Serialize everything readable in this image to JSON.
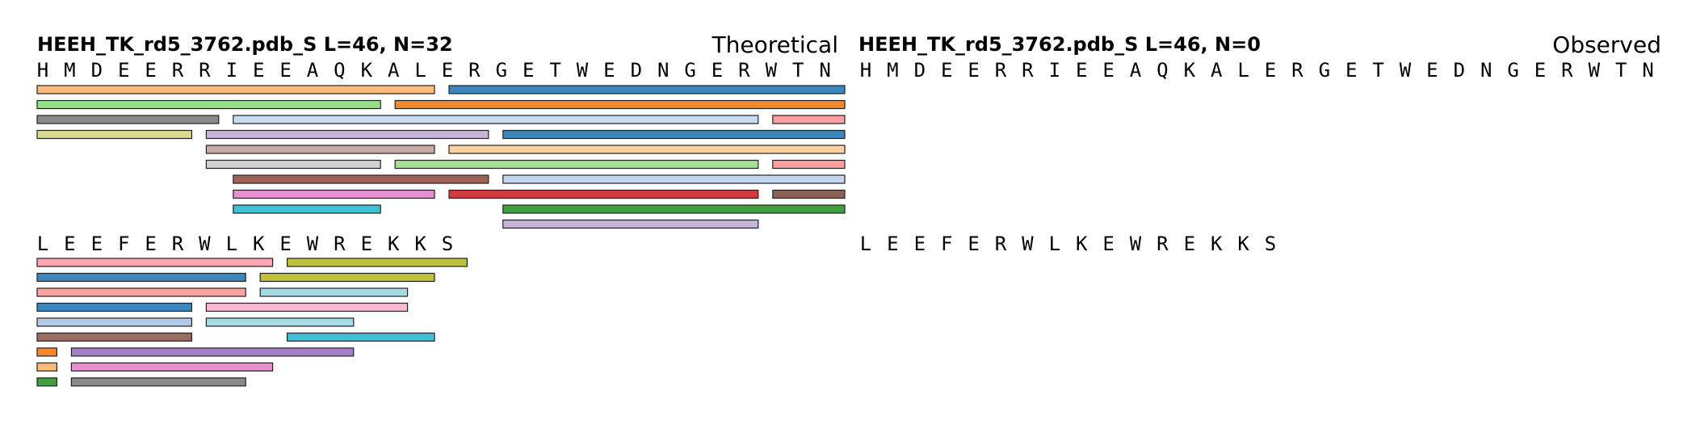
{
  "panels": [
    {
      "title": "HEEH_TK_rd5_3762.pdb_S  L=46, N=32",
      "label": "Theoretical",
      "rows": [
        {
          "sequence": "HMDEERRIEEAQKALERGETWEDNGERWTN",
          "start_index": 0,
          "fragments": [
            {
              "start": 0,
              "end": 14,
              "lane": 0,
              "color": "#ffbb78"
            },
            {
              "start": 15,
              "end": 29,
              "lane": 0,
              "color": "#3a87c0"
            },
            {
              "start": 0,
              "end": 12,
              "lane": 1,
              "color": "#98df8a"
            },
            {
              "start": 13,
              "end": 29,
              "lane": 1,
              "color": "#f5872f"
            },
            {
              "start": 0,
              "end": 6,
              "lane": 2,
              "color": "#8a8a8a"
            },
            {
              "start": 7,
              "end": 26,
              "lane": 2,
              "color": "#c5dcf2"
            },
            {
              "start": 27,
              "end": 29,
              "lane": 2,
              "color": "#ff9f9f"
            },
            {
              "start": 0,
              "end": 5,
              "lane": 3,
              "color": "#dbdb8d"
            },
            {
              "start": 6,
              "end": 16,
              "lane": 3,
              "color": "#c8b5da"
            },
            {
              "start": 17,
              "end": 29,
              "lane": 3,
              "color": "#3a87c0"
            },
            {
              "start": 6,
              "end": 14,
              "lane": 4,
              "color": "#c9aba5"
            },
            {
              "start": 15,
              "end": 29,
              "lane": 4,
              "color": "#ffd0a0"
            },
            {
              "start": 6,
              "end": 12,
              "lane": 5,
              "color": "#d1d1d1"
            },
            {
              "start": 13,
              "end": 26,
              "lane": 5,
              "color": "#a9df95"
            },
            {
              "start": 27,
              "end": 29,
              "lane": 5,
              "color": "#ff9f9f"
            },
            {
              "start": 7,
              "end": 16,
              "lane": 6,
              "color": "#9d6358"
            },
            {
              "start": 17,
              "end": 29,
              "lane": 6,
              "color": "#c5d6f0"
            },
            {
              "start": 7,
              "end": 14,
              "lane": 7,
              "color": "#e78fd0"
            },
            {
              "start": 15,
              "end": 26,
              "lane": 7,
              "color": "#d33c3c"
            },
            {
              "start": 27,
              "end": 29,
              "lane": 7,
              "color": "#8c6158"
            },
            {
              "start": 7,
              "end": 12,
              "lane": 8,
              "color": "#3cc2d4"
            },
            {
              "start": 17,
              "end": 29,
              "lane": 8,
              "color": "#3fa040"
            },
            {
              "start": 17,
              "end": 26,
              "lane": 9,
              "color": "#c8b5da"
            }
          ]
        },
        {
          "sequence": "LEEFERWLKEWREKKS",
          "start_index": 30,
          "fragments": [
            {
              "start": 0,
              "end": 8,
              "lane": 0,
              "color": "#ffa8b4"
            },
            {
              "start": 9,
              "end": 15,
              "lane": 0,
              "color": "#c0c13c"
            },
            {
              "start": 0,
              "end": 7,
              "lane": 1,
              "color": "#3a87c0"
            },
            {
              "start": 8,
              "end": 14,
              "lane": 1,
              "color": "#c0c13c"
            },
            {
              "start": 0,
              "end": 7,
              "lane": 2,
              "color": "#ffa3a3"
            },
            {
              "start": 8,
              "end": 13,
              "lane": 2,
              "color": "#a4dce6"
            },
            {
              "start": 0,
              "end": 5,
              "lane": 3,
              "color": "#3a87c0"
            },
            {
              "start": 6,
              "end": 13,
              "lane": 3,
              "color": "#f7bcd4"
            },
            {
              "start": 0,
              "end": 5,
              "lane": 4,
              "color": "#b5c9e8"
            },
            {
              "start": 6,
              "end": 11,
              "lane": 4,
              "color": "#a8dde6"
            },
            {
              "start": 0,
              "end": 5,
              "lane": 5,
              "color": "#9b6d60"
            },
            {
              "start": 9,
              "end": 14,
              "lane": 5,
              "color": "#3cc2d4"
            },
            {
              "start": 0,
              "end": 0,
              "lane": 6,
              "color": "#f5872f"
            },
            {
              "start": 1,
              "end": 11,
              "lane": 6,
              "color": "#a37fc8"
            },
            {
              "start": 0,
              "end": 0,
              "lane": 7,
              "color": "#ffbb78"
            },
            {
              "start": 1,
              "end": 8,
              "lane": 7,
              "color": "#e78fd0"
            },
            {
              "start": 0,
              "end": 0,
              "lane": 8,
              "color": "#3fa040"
            },
            {
              "start": 1,
              "end": 7,
              "lane": 8,
              "color": "#8a8a8a"
            }
          ]
        }
      ]
    },
    {
      "title": "HEEH_TK_rd5_3762.pdb_S  L=46, N=0",
      "label": "Observed",
      "rows": [
        {
          "sequence": "HMDEERRIEEAQKALERGETWEDNGERWTN",
          "start_index": 0,
          "fragments": []
        },
        {
          "sequence": "LEEFERWLKEWREKKS",
          "start_index": 30,
          "fragments": []
        }
      ]
    }
  ]
}
